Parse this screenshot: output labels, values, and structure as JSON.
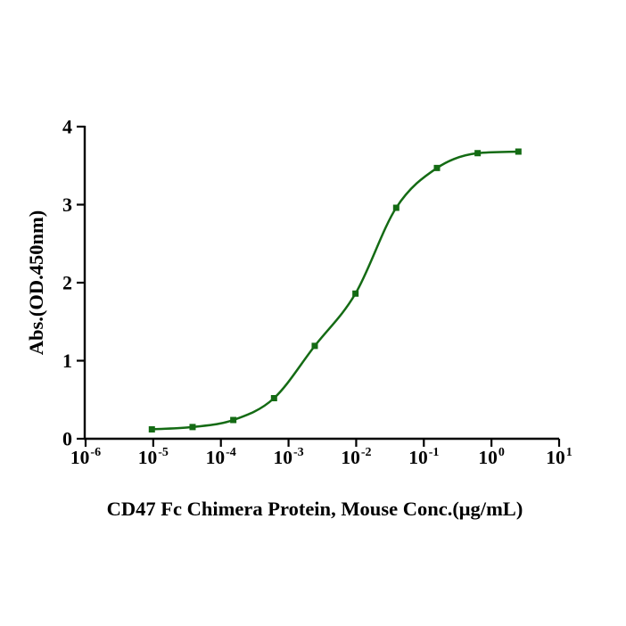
{
  "figure": {
    "background": "#ffffff",
    "axis_color": "#000000",
    "text_color": "#000000"
  },
  "chart_data": {
    "type": "scatter",
    "title": "",
    "xlabel": "CD47 Fc Chimera Protein, Mouse Conc.(μg/mL)",
    "ylabel": "Abs.(OD.450nm)",
    "x_scale": "log10",
    "x_tick_base": "10",
    "x_tick_exponents": [
      "-6",
      "-5",
      "-4",
      "-3",
      "-2",
      "-1",
      "0",
      "1"
    ],
    "xlim": [
      1e-06,
      10
    ],
    "y_ticks": [
      0,
      1,
      2,
      3,
      4
    ],
    "ylim": [
      0,
      4
    ],
    "grid": false,
    "legend_position": "none",
    "series": [
      {
        "color": "#146b14",
        "marker": "square",
        "line": "sigmoid-fit",
        "points": [
          {
            "x": 9.537e-06,
            "y": 0.12
          },
          {
            "x": 3.815e-05,
            "y": 0.15
          },
          {
            "x": 0.0001526,
            "y": 0.24
          },
          {
            "x": 0.0006104,
            "y": 0.52
          },
          {
            "x": 0.002441,
            "y": 1.19
          },
          {
            "x": 0.009766,
            "y": 1.86
          },
          {
            "x": 0.03906,
            "y": 2.96
          },
          {
            "x": 0.1563,
            "y": 3.47
          },
          {
            "x": 0.625,
            "y": 3.66
          },
          {
            "x": 2.5,
            "y": 3.68
          }
        ]
      }
    ]
  }
}
